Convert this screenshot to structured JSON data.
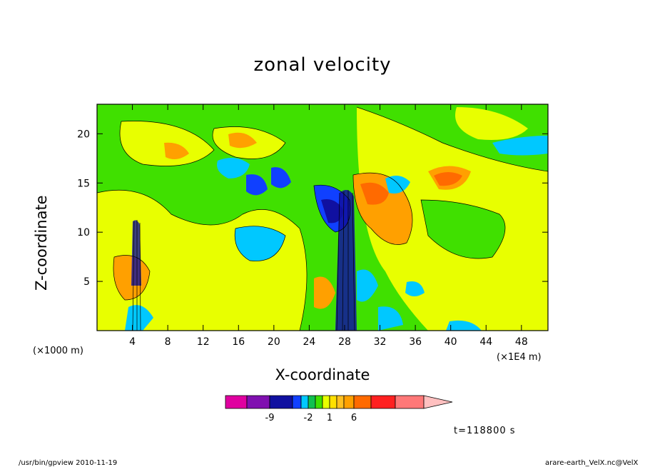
{
  "chart_data": {
    "type": "heatmap",
    "title": "zonal velocity",
    "xlabel": "X-coordinate",
    "ylabel": "Z-coordinate",
    "x_unit_left": "(×1000 m)",
    "x_unit_right": "(×1E4 m)",
    "xlim": [
      0,
      51
    ],
    "ylim": [
      0,
      23
    ],
    "x_ticks": [
      4,
      8,
      12,
      16,
      20,
      24,
      28,
      32,
      36,
      40,
      44,
      48
    ],
    "y_ticks": [
      5,
      10,
      15,
      20
    ],
    "colorbar": {
      "colors": [
        "#e000a0",
        "#8010b0",
        "#1010a0",
        "#1040ff",
        "#00c8ff",
        "#10c050",
        "#40e000",
        "#e8ff00",
        "#ffe000",
        "#ffc020",
        "#ffa000",
        "#ff6a00",
        "#ff2020",
        "#ff7878",
        "#ffc0c0"
      ],
      "tick_labels": [
        "-9",
        "-2",
        "1",
        "6"
      ],
      "tick_values": [
        -9,
        -2,
        1,
        6
      ],
      "extend": "max"
    },
    "regions": [
      {
        "level": 0.5,
        "shape": "background",
        "color": "#40e000"
      },
      {
        "level": 0.8,
        "center": [
          28,
          13
        ],
        "note": "strong shear column",
        "value_range": [
          -9,
          6
        ]
      },
      {
        "level": 0.5,
        "center": [
          4.2,
          8
        ],
        "note": "shear column",
        "value_range": [
          -4,
          3
        ]
      }
    ]
  },
  "annotations": {
    "time": "t=118800 s",
    "footer_left": "/usr/bin/gpview   2010-11-19",
    "footer_right": "arare-earth_VelX.nc@VelX"
  }
}
